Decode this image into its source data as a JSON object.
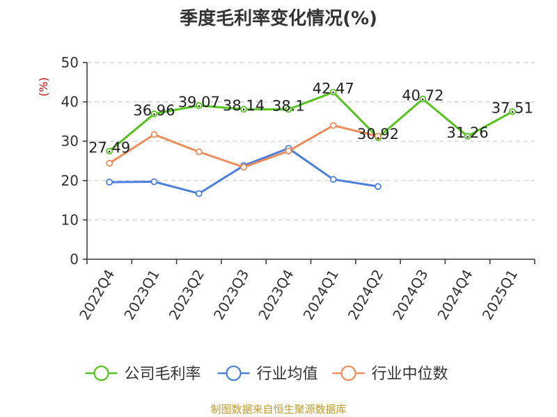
{
  "chart_data": {
    "type": "line",
    "title": "季度毛利率变化情况(%)",
    "ylabel": "(%)",
    "ylim": [
      0,
      50
    ],
    "yticks": [
      0,
      10,
      20,
      30,
      40,
      50
    ],
    "grid": true,
    "legend_position": "bottom",
    "categories": [
      "2022Q4",
      "2023Q1",
      "2023Q2",
      "2023Q3",
      "2023Q4",
      "2024Q1",
      "2024Q2",
      "2024Q3",
      "2024Q4",
      "2025Q1"
    ],
    "series": [
      {
        "name": "公司毛利率",
        "color": "#52c41a",
        "values": [
          27.49,
          36.96,
          39.07,
          38.14,
          38.1,
          42.47,
          30.92,
          40.72,
          31.26,
          37.51
        ],
        "labels": [
          "27.49",
          "36.96",
          "39.07",
          "38.14",
          "38.1",
          "42.47",
          "30.92",
          "40.72",
          "31.26",
          "37.51"
        ]
      },
      {
        "name": "行业均值",
        "color": "#4a7fdc",
        "values": [
          19.6,
          19.7,
          16.7,
          23.8,
          28.2,
          20.3,
          18.5,
          null,
          null,
          null
        ]
      },
      {
        "name": "行业中位数",
        "color": "#f08c5a",
        "values": [
          24.4,
          31.7,
          27.3,
          23.4,
          27.5,
          34.0,
          31.3,
          null,
          null,
          null
        ]
      }
    ]
  },
  "source_note": "制图数据来自恒生聚源数据库",
  "colors": {
    "axis": "#333333",
    "grid": "#cccccc",
    "unit_label": "#cc0000",
    "source_note": "#c39b2b"
  }
}
